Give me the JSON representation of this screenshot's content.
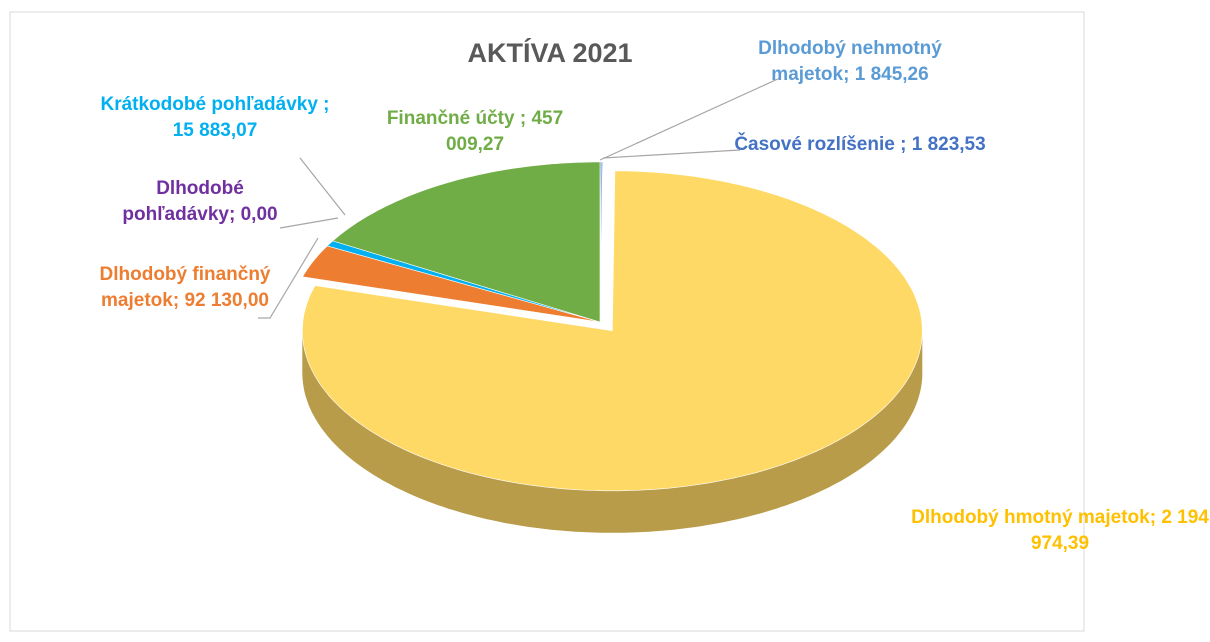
{
  "chart_data": {
    "type": "pie",
    "title": "AKTÍVA 2021",
    "categories": [
      "Dlhodobý nehmotný majetok;",
      "Časové rozlíšenie ;",
      "Dlhodobý hmotný majetok;",
      "Dlhodobý finančný majetok;",
      "Dlhodobé pohľadávky;",
      "Krátkodobé pohľadávky ;",
      "Finančné účty ;"
    ],
    "values": [
      1845.26,
      1823.53,
      2194974.39,
      92130.0,
      0.0,
      15883.07,
      457009.27
    ],
    "value_labels": [
      "1 845,26",
      "1 823,53",
      "2 194 974,39",
      "92 130,00",
      "0,00",
      "15 883,07",
      "457 009,27"
    ],
    "colors": [
      "#5b9bd5",
      "#4472c4",
      "#ffd966",
      "#ed7d31",
      "#7030a0",
      "#00b0f0",
      "#70ad47"
    ],
    "label_colors": [
      "#5b9bd5",
      "#4472c4",
      "#ffc000",
      "#ed7d31",
      "#7030a0",
      "#00b0f0",
      "#70ad47"
    ]
  }
}
